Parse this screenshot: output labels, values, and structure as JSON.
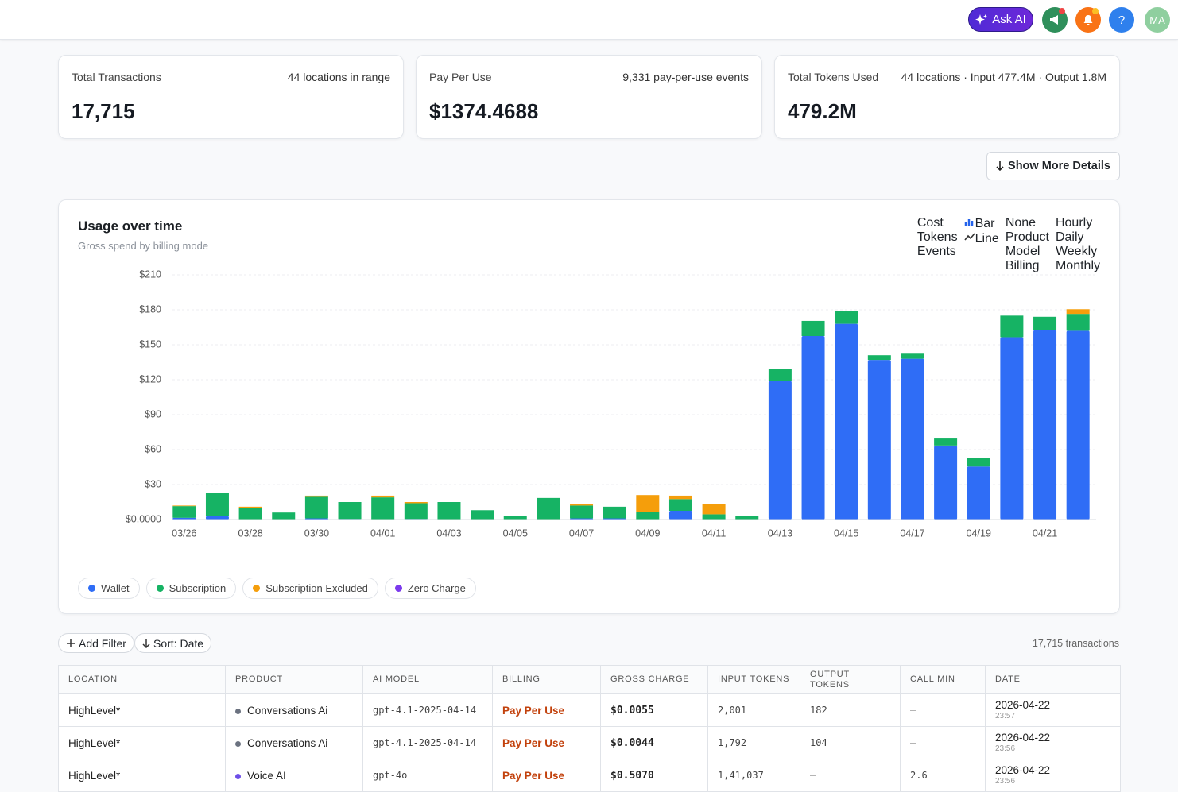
{
  "header": {
    "ask_ai": "Ask AI",
    "help": "?",
    "avatar": "MA"
  },
  "stats": [
    {
      "label": "Total Transactions",
      "meta": "44 locations in range",
      "value": "17,715"
    },
    {
      "label": "Pay Per Use",
      "meta": "9,331 pay-per-use events",
      "value": "$1374.4688"
    },
    {
      "label": "Total Tokens Used",
      "meta": "44 locations · Input 477.4M · Output 1.8M",
      "value": "479.2M"
    }
  ],
  "show_more": "Show More Details",
  "controls": [
    {
      "options": [
        "Cost",
        "Tokens",
        "Events"
      ],
      "active": 0
    },
    {
      "options": [
        "Bar",
        "Line"
      ],
      "active": 0
    },
    {
      "options": [
        "None",
        "Product",
        "Model",
        "Billing"
      ],
      "active": 3
    },
    {
      "options": [
        "Hourly",
        "Daily",
        "Weekly",
        "Monthly"
      ],
      "active": 1
    }
  ],
  "chart_data": {
    "type": "bar",
    "stacked": true,
    "title": "Usage over time",
    "subtitle": "Gross spend by billing mode",
    "categories": [
      "03/26",
      null,
      "03/28",
      null,
      "03/30",
      null,
      "04/01",
      null,
      "04/03",
      null,
      "04/05",
      null,
      "04/07",
      null,
      "04/09",
      null,
      "04/11",
      null,
      "04/13",
      null,
      "04/15",
      null,
      "04/17",
      null,
      "04/19",
      null,
      "04/21",
      null
    ],
    "series": [
      {
        "name": "Wallet",
        "color": "#2f6df6",
        "values": [
          1.5,
          3,
          0,
          0,
          1,
          0.5,
          0,
          0.5,
          0,
          0,
          0,
          0,
          1,
          1,
          0,
          7.5,
          0,
          0,
          119,
          157.5,
          168,
          137,
          138,
          63.5,
          45.5,
          156.5,
          162.5,
          162
        ]
      },
      {
        "name": "Subscription",
        "color": "#16b364",
        "values": [
          10,
          19.5,
          10,
          6,
          18.5,
          14.5,
          19,
          13.5,
          15,
          8,
          3,
          18.5,
          11,
          10,
          6.5,
          10,
          4.5,
          3,
          10,
          13,
          11,
          4,
          5,
          6,
          7,
          18.5,
          11.5,
          14.5
        ]
      },
      {
        "name": "Subscription Excluded",
        "color": "#f59e0b",
        "values": [
          0.5,
          0.5,
          1,
          0,
          1,
          0,
          1.5,
          1,
          0,
          0,
          0,
          0,
          1,
          0,
          14.5,
          3,
          8.5,
          0,
          0,
          0,
          0,
          0,
          0,
          0,
          0,
          0,
          0,
          4
        ]
      },
      {
        "name": "Zero Charge",
        "color": "#7c3aed",
        "values": [
          0,
          0,
          0,
          0,
          0,
          0,
          0,
          0,
          0,
          0,
          0,
          0,
          0,
          0,
          0,
          0,
          0,
          0,
          0,
          0,
          0,
          0,
          0,
          0,
          0,
          0,
          0,
          0
        ]
      }
    ],
    "ylim": [
      0,
      210
    ],
    "yticks": [
      {
        "value": 0,
        "label": "$0.0000"
      },
      {
        "value": 30,
        "label": "$30"
      },
      {
        "value": 60,
        "label": "$60"
      },
      {
        "value": 90,
        "label": "$90"
      },
      {
        "value": 120,
        "label": "$120"
      },
      {
        "value": 150,
        "label": "$150"
      },
      {
        "value": 180,
        "label": "$180"
      },
      {
        "value": 210,
        "label": "$210"
      }
    ],
    "grid": true
  },
  "toolbar": {
    "add_filter": "Add Filter",
    "sort": "Sort: Date",
    "count": "17,715 transactions"
  },
  "table": {
    "columns": [
      "LOCATION",
      "PRODUCT",
      "AI MODEL",
      "BILLING",
      "GROSS CHARGE",
      "INPUT TOKENS",
      "OUTPUT TOKENS",
      "CALL MIN",
      "DATE"
    ],
    "rows": [
      {
        "location": "HighLevel*",
        "product": "Conversations Ai",
        "model": "gpt-4.1-2025-04-14",
        "billing": "Pay Per Use",
        "gross_charge": "$0.0055",
        "input_tokens": "2,001",
        "output_tokens": "182",
        "call_min": "—",
        "date": "2026-04-22",
        "time": "23:57"
      },
      {
        "location": "HighLevel*",
        "product": "Conversations Ai",
        "model": "gpt-4.1-2025-04-14",
        "billing": "Pay Per Use",
        "gross_charge": "$0.0044",
        "input_tokens": "1,792",
        "output_tokens": "104",
        "call_min": "—",
        "date": "2026-04-22",
        "time": "23:56"
      },
      {
        "location": "HighLevel*",
        "product": "Voice AI",
        "model": "gpt-4o",
        "billing": "Pay Per Use",
        "gross_charge": "$0.5070",
        "input_tokens": "1,41,037",
        "output_tokens": "—",
        "call_min": "2.6",
        "date": "2026-04-22",
        "time": "23:56"
      }
    ]
  }
}
